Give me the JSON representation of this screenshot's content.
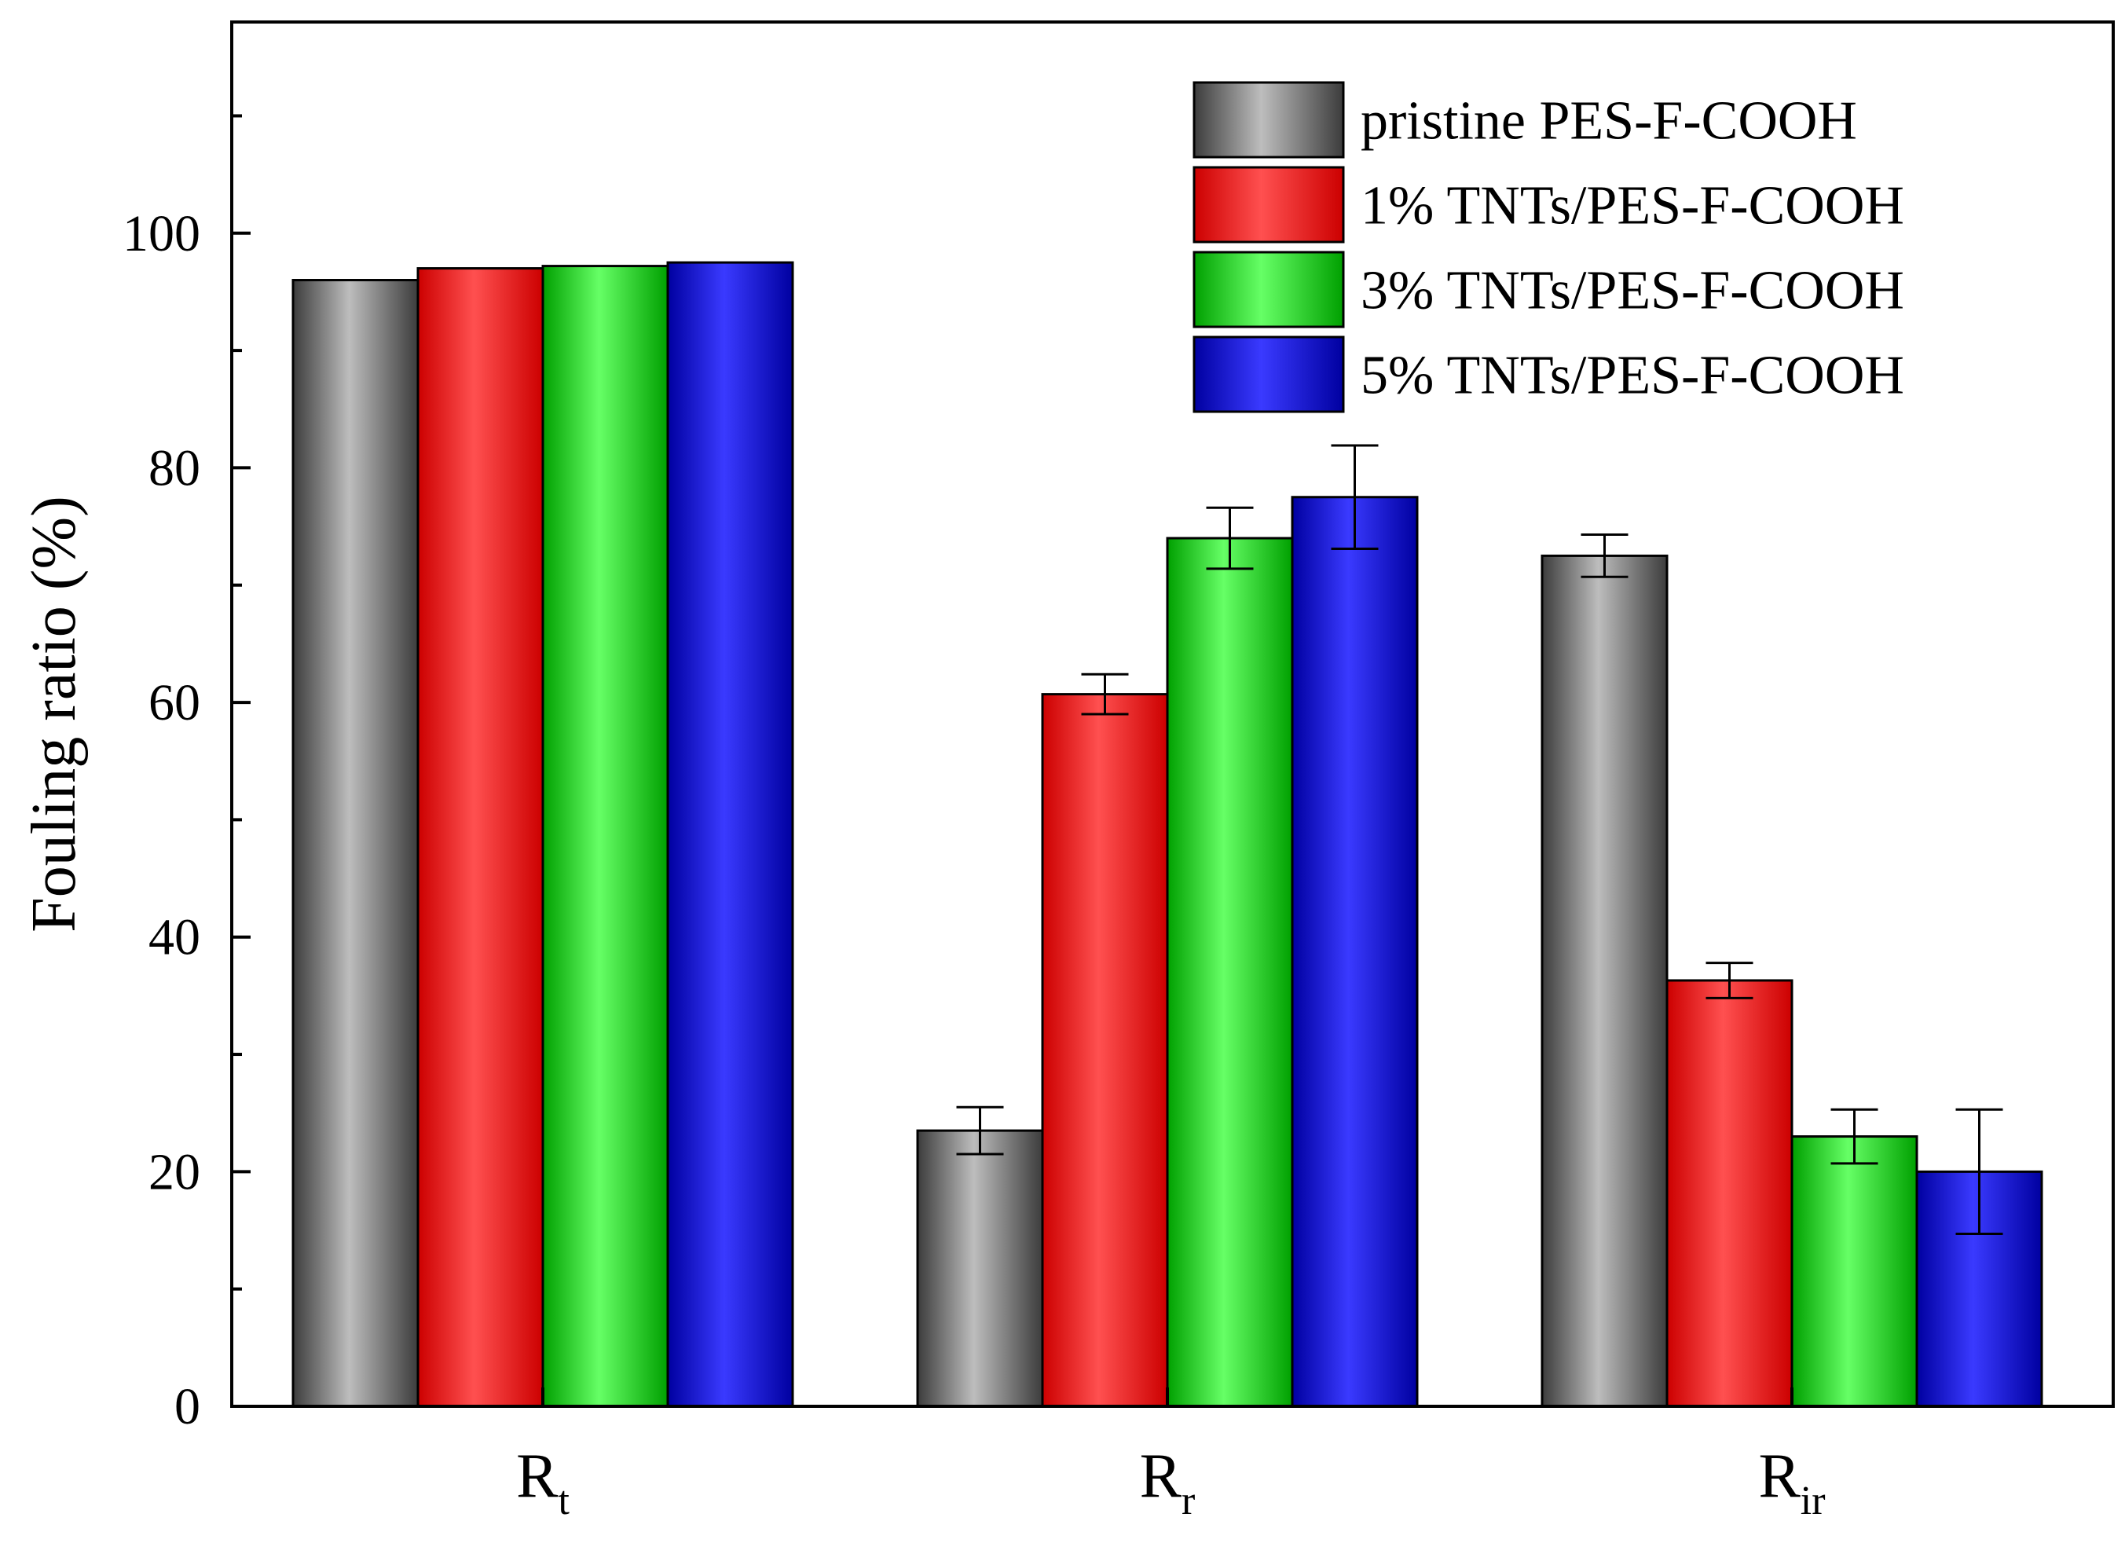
{
  "chart_data": {
    "type": "bar",
    "title": "",
    "ylabel": "Fouling ratio (%)",
    "xlabel": "",
    "ylim": [
      0,
      118
    ],
    "yticks": [
      0,
      20,
      40,
      60,
      80,
      100
    ],
    "yticks_minor": [
      10,
      30,
      50,
      70,
      90,
      110
    ],
    "categories": [
      {
        "main": "R",
        "sub": "t"
      },
      {
        "main": "R",
        "sub": "r"
      },
      {
        "main": "R",
        "sub": "ir"
      }
    ],
    "legend_position": "top-right",
    "series": [
      {
        "name": "pristine PES-F-COOH",
        "color": "#6e6e6e",
        "light": "#bdbdbd",
        "dark": "#3c3c3c",
        "values": [
          96.0,
          23.5,
          72.5
        ],
        "errors": [
          0,
          2.0,
          1.8
        ]
      },
      {
        "name": "1% TNTs/PES-F-COOH",
        "color": "#ff0000",
        "light": "#ff5050",
        "dark": "#cc0000",
        "values": [
          97.0,
          60.7,
          36.3
        ],
        "errors": [
          0,
          1.7,
          1.5
        ]
      },
      {
        "name": "3% TNTs/PES-F-COOH",
        "color": "#00dd00",
        "light": "#66ff66",
        "dark": "#00a000",
        "values": [
          97.2,
          74.0,
          23.0
        ],
        "errors": [
          0,
          2.6,
          2.3
        ]
      },
      {
        "name": "5% TNTs/PES-F-COOH",
        "color": "#0000ee",
        "light": "#3a3aff",
        "dark": "#0000a0",
        "values": [
          97.5,
          77.5,
          20.0
        ],
        "errors": [
          0,
          4.4,
          5.3
        ]
      }
    ]
  }
}
